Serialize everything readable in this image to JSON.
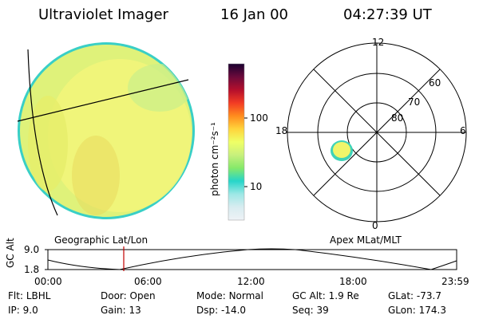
{
  "header": {
    "instrument": "Ultraviolet Imager",
    "date": "16 Jan 00",
    "time": "04:27:39 UT"
  },
  "colorbar": {
    "unit_label": "photon cm⁻²s⁻¹",
    "ticks": [
      "100",
      "10"
    ],
    "colors": [
      "#eef2f6",
      "#d8ecf0",
      "#9de8e6",
      "#26d5c9",
      "#86e96a",
      "#c8f07d",
      "#efff66",
      "#ffd43c",
      "#ff8c1e",
      "#f23b24",
      "#b40f2c",
      "#6b0a3b",
      "#1a0030"
    ]
  },
  "geo_panel": {
    "caption": "Geographic Lat/Lon",
    "disk_color": "#f2f57a"
  },
  "polar_panel": {
    "caption": "Apex MLat/MLT",
    "mlt_labels": {
      "top": "12",
      "left": "18",
      "right": "6",
      "bottom": "0"
    },
    "lat_labels": [
      "60",
      "70",
      "80"
    ]
  },
  "timeline": {
    "axis_label": "GC Alt",
    "y_labels": [
      "9.0",
      "1.8"
    ],
    "x_labels": [
      "00:00",
      "06:00",
      "12:00",
      "18:00",
      "23:59"
    ],
    "marker_color": "#c00000"
  },
  "status": {
    "row1": [
      {
        "label": "Flt:",
        "value": "LBHL"
      },
      {
        "label": "Door:",
        "value": "Open"
      },
      {
        "label": "Mode:",
        "value": "Normal"
      },
      {
        "label": "GC Alt:",
        "value": "1.9 Re"
      },
      {
        "label": "GLat:",
        "value": "-73.7"
      }
    ],
    "row2": [
      {
        "label": "IP:",
        "value": "9.0"
      },
      {
        "label": "Gain:",
        "value": "13"
      },
      {
        "label": "Dsp:",
        "value": "-14.0"
      },
      {
        "label": "Seq:",
        "value": "39"
      },
      {
        "label": "GLon:",
        "value": "174.3"
      }
    ]
  }
}
